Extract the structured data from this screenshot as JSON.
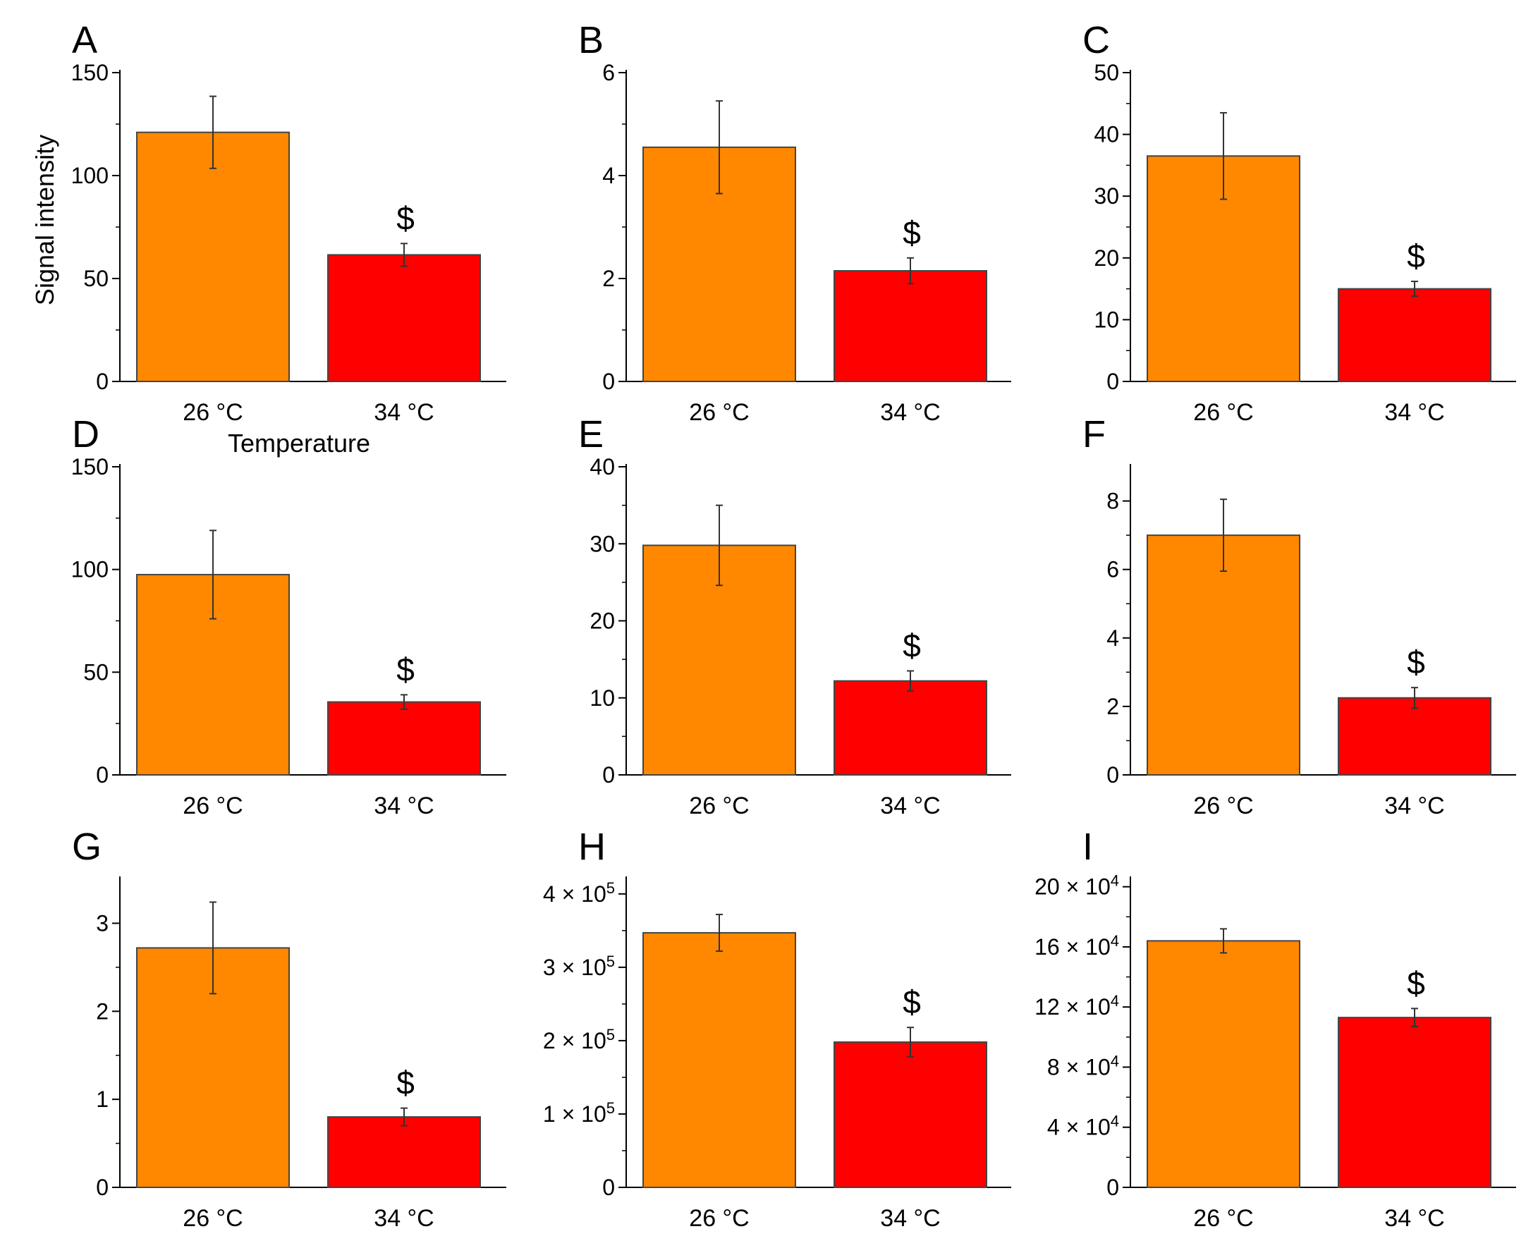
{
  "colors": {
    "bar_26": "#FF8800",
    "bar_34": "#FF0000"
  },
  "chart_data": [
    {
      "label": "A",
      "type": "bar",
      "categories": [
        "26 °C",
        "34 °C"
      ],
      "values": [
        121,
        61.5
      ],
      "errors": [
        17.5,
        5.5
      ],
      "significance": [
        "",
        "$"
      ],
      "ylim": [
        0,
        150
      ],
      "ticks": [
        0,
        50,
        100,
        150
      ],
      "tick_labels": [
        "0",
        "50",
        "100",
        "150"
      ],
      "ylabel": "Signal intensity",
      "xlabel": "Temperature"
    },
    {
      "label": "B",
      "type": "bar",
      "categories": [
        "26 °C",
        "34 °C"
      ],
      "values": [
        4.55,
        2.15
      ],
      "errors": [
        0.9,
        0.25
      ],
      "significance": [
        "",
        "$"
      ],
      "ylim": [
        0,
        6
      ],
      "ticks": [
        0,
        2,
        4,
        6
      ],
      "tick_labels": [
        "0",
        "2",
        "4",
        "6"
      ],
      "ylabel": "",
      "xlabel": ""
    },
    {
      "label": "C",
      "type": "bar",
      "categories": [
        "26 °C",
        "34 °C"
      ],
      "values": [
        36.5,
        15
      ],
      "errors": [
        7,
        1.2
      ],
      "significance": [
        "",
        "$"
      ],
      "ylim": [
        0,
        50
      ],
      "ticks": [
        0,
        10,
        20,
        30,
        40,
        50
      ],
      "tick_labels": [
        "0",
        "10",
        "20",
        "30",
        "40",
        "50"
      ],
      "ylabel": "",
      "xlabel": ""
    },
    {
      "label": "D",
      "type": "bar",
      "categories": [
        "26 °C",
        "34 °C"
      ],
      "values": [
        97.5,
        35.5
      ],
      "errors": [
        21.5,
        3.5
      ],
      "significance": [
        "",
        "$"
      ],
      "ylim": [
        0,
        150
      ],
      "ticks": [
        0,
        50,
        100,
        150
      ],
      "tick_labels": [
        "0",
        "50",
        "100",
        "150"
      ],
      "ylabel": "",
      "xlabel": ""
    },
    {
      "label": "E",
      "type": "bar",
      "categories": [
        "26 °C",
        "34 °C"
      ],
      "values": [
        29.8,
        12.2
      ],
      "errors": [
        5.2,
        1.3
      ],
      "significance": [
        "",
        "$"
      ],
      "ylim": [
        0,
        40
      ],
      "ticks": [
        0,
        10,
        20,
        30,
        40
      ],
      "tick_labels": [
        "0",
        "10",
        "20",
        "30",
        "40"
      ],
      "ylabel": "",
      "xlabel": ""
    },
    {
      "label": "F",
      "type": "bar",
      "categories": [
        "26 °C",
        "34 °C"
      ],
      "values": [
        7.0,
        2.25
      ],
      "errors": [
        1.05,
        0.3
      ],
      "significance": [
        "",
        "$"
      ],
      "ylim": [
        0,
        9
      ],
      "ticks": [
        0,
        2,
        4,
        6,
        8
      ],
      "tick_labels": [
        "0",
        "2",
        "4",
        "6",
        "8"
      ],
      "ylabel": "",
      "xlabel": ""
    },
    {
      "label": "G",
      "type": "bar",
      "categories": [
        "26 °C",
        "34 °C"
      ],
      "values": [
        2.72,
        0.8
      ],
      "errors": [
        0.52,
        0.1
      ],
      "significance": [
        "",
        "$"
      ],
      "ylim": [
        0,
        3.5
      ],
      "ticks": [
        0,
        1,
        2,
        3
      ],
      "tick_labels": [
        "0",
        "1",
        "2",
        "3"
      ],
      "ylabel": "",
      "xlabel": ""
    },
    {
      "label": "H",
      "type": "bar",
      "categories": [
        "26 °C",
        "34 °C"
      ],
      "values": [
        347000,
        198000
      ],
      "errors": [
        25000,
        20000
      ],
      "significance": [
        "",
        "$"
      ],
      "ylim": [
        0,
        420000
      ],
      "ticks": [
        0,
        100000,
        200000,
        300000,
        400000
      ],
      "tick_labels": [
        {
          "base": "0",
          "exp": ""
        },
        {
          "base": "1 × 10",
          "exp": "5"
        },
        {
          "base": "2 × 10",
          "exp": "5"
        },
        {
          "base": "3 × 10",
          "exp": "5"
        },
        {
          "base": "4 × 10",
          "exp": "5"
        }
      ],
      "ylabel": "",
      "xlabel": ""
    },
    {
      "label": "I",
      "type": "bar",
      "categories": [
        "26 °C",
        "34 °C"
      ],
      "values": [
        164000,
        113000
      ],
      "errors": [
        8000,
        6000
      ],
      "significance": [
        "",
        "$"
      ],
      "ylim": [
        0,
        205000
      ],
      "ticks": [
        0,
        40000,
        80000,
        120000,
        160000,
        200000
      ],
      "tick_labels": [
        {
          "base": "0",
          "exp": ""
        },
        {
          "base": "4 × 10",
          "exp": "4"
        },
        {
          "base": "8 × 10",
          "exp": "4"
        },
        {
          "base": "12 × 10",
          "exp": "4"
        },
        {
          "base": "16 × 10",
          "exp": "4"
        },
        {
          "base": "20 × 10",
          "exp": "4"
        }
      ],
      "ylabel": "",
      "xlabel": ""
    }
  ]
}
